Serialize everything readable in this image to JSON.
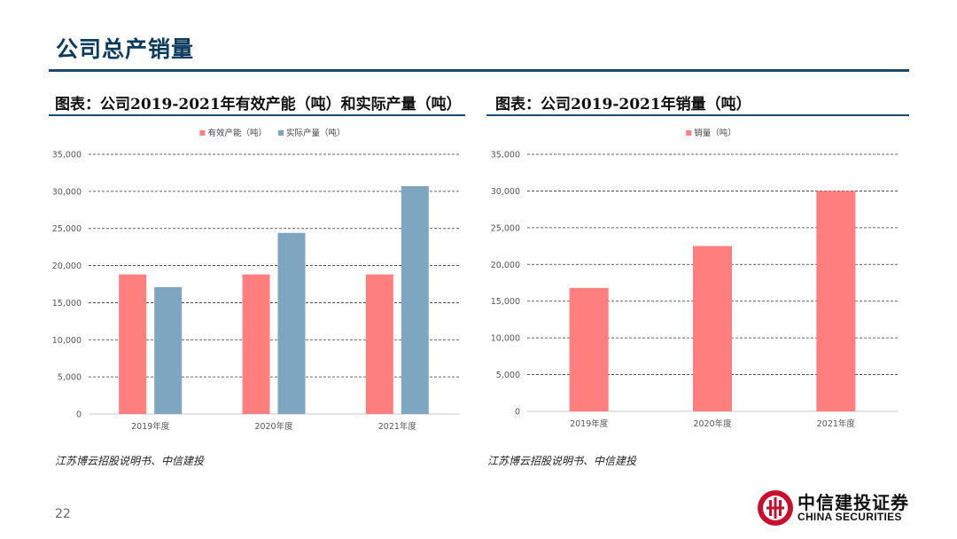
{
  "slide": {
    "title": "公司总产销量",
    "page_number": "22"
  },
  "left_panel": {
    "heading": "图表：公司2019-2021年有效产能（吨）和实际产量（吨）",
    "source": "江苏博云招股说明书、中信建投"
  },
  "right_panel": {
    "heading": "图表：公司2019-2021年销量（吨）",
    "source": "江苏博云招股说明书、中信建投"
  },
  "logo": {
    "name_cn": "中信建投证券",
    "name_en": "CHINA SECURITIES"
  },
  "colors": {
    "accent": "#1b4a6b",
    "title": "#0d3b5e",
    "series_pink": "#ff7f7f",
    "series_blue": "#7fa6c0",
    "logo_red": "#c8102e"
  },
  "chart_data": [
    {
      "type": "bar",
      "title": "",
      "categories": [
        "2019年度",
        "2020年度",
        "2021年度"
      ],
      "series": [
        {
          "name": "有效产能（吨）",
          "values": [
            18800,
            18800,
            18800
          ],
          "color": "#ff7f7f"
        },
        {
          "name": "实际产量（吨）",
          "values": [
            17100,
            24400,
            30700
          ],
          "color": "#7fa6c0"
        }
      ],
      "ylim": [
        0,
        35000
      ],
      "yticks": [
        0,
        5000,
        10000,
        15000,
        20000,
        25000,
        30000,
        35000
      ],
      "ytick_labels": [
        "0",
        "5,000",
        "10,000",
        "15,000",
        "20,000",
        "25,000",
        "30,000",
        "35,000"
      ],
      "xlabel": "",
      "ylabel": "",
      "grid": "dashed horizontal",
      "legend": "top-center"
    },
    {
      "type": "bar",
      "title": "",
      "categories": [
        "2019年度",
        "2020年度",
        "2021年度"
      ],
      "series": [
        {
          "name": "销量（吨）",
          "values": [
            16800,
            22500,
            30000
          ],
          "color": "#ff7f7f"
        }
      ],
      "ylim": [
        0,
        35000
      ],
      "yticks": [
        0,
        5000,
        10000,
        15000,
        20000,
        25000,
        30000,
        35000
      ],
      "ytick_labels": [
        "0",
        "5,000",
        "10,000",
        "15,000",
        "20,000",
        "25,000",
        "30,000",
        "35,000"
      ],
      "xlabel": "",
      "ylabel": "",
      "grid": "dashed horizontal",
      "legend": "top-center"
    }
  ]
}
